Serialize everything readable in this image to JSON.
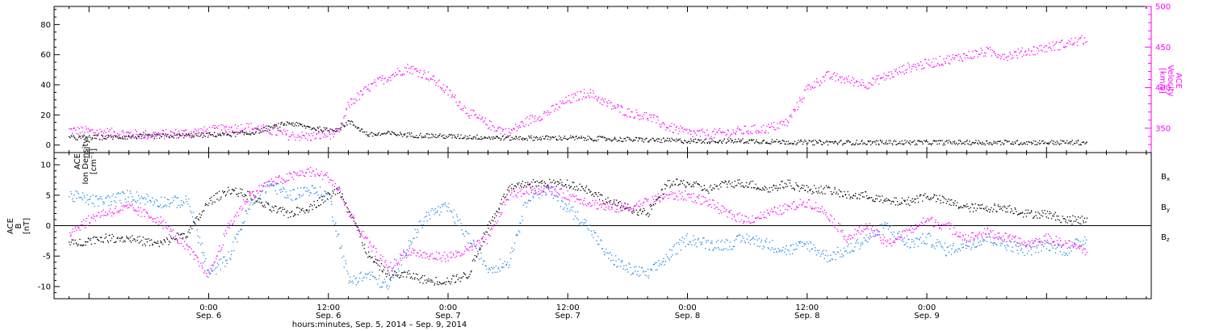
{
  "chart_data": [
    {
      "type": "scatter",
      "panel": "top",
      "ylabel_left": [
        "ACE",
        "Ion Density",
        "[cm⁻³]"
      ],
      "ylabel_right": [
        "ACE",
        "Velocity",
        "[km/s]"
      ],
      "ylim_left": [
        -5,
        92
      ],
      "ylim_right": [
        320,
        500
      ],
      "yticks_left": [
        "0",
        "20",
        "40",
        "60",
        "80"
      ],
      "yticks_right": [
        "350",
        "400",
        "450",
        "500"
      ],
      "colors": {
        "density": "#000000",
        "velocity": "#ff00ff"
      },
      "series": [
        {
          "name": "Ion Density",
          "axis": "left",
          "x": [
            -14,
            -6,
            0,
            4,
            8,
            10,
            12,
            13,
            14,
            16,
            18,
            20,
            24,
            30,
            36,
            42,
            48,
            54,
            60,
            66,
            72,
            78,
            84,
            88
          ],
          "values": [
            5,
            6,
            7,
            8,
            15,
            12,
            10,
            11,
            16,
            7,
            8,
            7,
            6,
            5,
            5,
            4,
            3,
            3,
            2,
            2,
            2,
            2,
            2,
            2
          ]
        },
        {
          "name": "Velocity",
          "axis": "right",
          "x": [
            -14,
            -10,
            -6,
            -2,
            2,
            4,
            6,
            8,
            10,
            12,
            13,
            14,
            16,
            17,
            19,
            20,
            22,
            24,
            26,
            28,
            30,
            32,
            34,
            36,
            38,
            40,
            42,
            44,
            46,
            48,
            50,
            52,
            54,
            56,
            58,
            60,
            62,
            64,
            66,
            68,
            70,
            72,
            74,
            76,
            78,
            80,
            82,
            84,
            86,
            88
          ],
          "values": [
            348,
            345,
            342,
            345,
            350,
            352,
            348,
            342,
            340,
            343,
            345,
            380,
            400,
            408,
            420,
            425,
            415,
            395,
            370,
            355,
            345,
            360,
            370,
            385,
            395,
            380,
            370,
            365,
            352,
            345,
            343,
            345,
            348,
            350,
            358,
            400,
            415,
            410,
            405,
            415,
            425,
            430,
            435,
            440,
            445,
            440,
            445,
            450,
            455,
            460
          ]
        }
      ]
    },
    {
      "type": "scatter",
      "panel": "bottom",
      "ylabel": [
        "ACE",
        "B",
        "[nT]"
      ],
      "ylim": [
        -12,
        12
      ],
      "yticks": [
        "-10",
        "-5",
        "0",
        "5",
        "10"
      ],
      "colors": {
        "Bx": "#000000",
        "By": "#1e88e5",
        "Bz": "#ff00ff"
      },
      "legend": [
        "Bx",
        "By",
        "Bz"
      ],
      "zero_line": true,
      "series": [
        {
          "name": "Bx",
          "x": [
            -14,
            -11,
            -8,
            -5,
            -2,
            0,
            2,
            4,
            6,
            8,
            10,
            12,
            13,
            14,
            16,
            18,
            20,
            22,
            24,
            26,
            28,
            30,
            32,
            34,
            36,
            38,
            40,
            42,
            44,
            46,
            48,
            50,
            52,
            54,
            56,
            58,
            60,
            62,
            64,
            66,
            68,
            70,
            72,
            74,
            76,
            78,
            80,
            82,
            84,
            86,
            88
          ],
          "values": [
            -3,
            -2,
            -2,
            -3,
            -1,
            4,
            6,
            5,
            3,
            2,
            3,
            5,
            6,
            3,
            -5,
            -8,
            -8,
            -9,
            -9,
            -8,
            0,
            6,
            7,
            7,
            7,
            6,
            4,
            3,
            2,
            7,
            7,
            6,
            7,
            7,
            6,
            7,
            6,
            6,
            5,
            5,
            4,
            4,
            5,
            4,
            3,
            3,
            3,
            2,
            2,
            1,
            1
          ]
        },
        {
          "name": "By",
          "x": [
            -14,
            -11,
            -8,
            -5,
            -2,
            0,
            2,
            4,
            6,
            8,
            10,
            12,
            14,
            16,
            18,
            20,
            22,
            24,
            26,
            28,
            30,
            32,
            34,
            36,
            38,
            40,
            42,
            44,
            46,
            48,
            50,
            52,
            54,
            56,
            58,
            60,
            62,
            64,
            66,
            68,
            70,
            72,
            74,
            76,
            78,
            80,
            82,
            84,
            86,
            88
          ],
          "values": [
            5,
            4,
            5,
            4,
            4,
            -8,
            -5,
            3,
            7,
            5,
            6,
            5,
            -9,
            -8,
            -10,
            -3,
            2,
            3,
            -2,
            -7,
            -6,
            5,
            6,
            3,
            0,
            -5,
            -7,
            -8,
            -5,
            -2,
            -3,
            -3,
            -2,
            -3,
            -4,
            -3,
            -5,
            -4,
            -2,
            0,
            -3,
            -2,
            -4,
            -3,
            -2,
            -3,
            -4,
            -3,
            -4,
            -2
          ]
        },
        {
          "name": "Bz",
          "x": [
            -14,
            -11,
            -8,
            -5,
            -2,
            0,
            2,
            4,
            6,
            8,
            10,
            12,
            13,
            14,
            16,
            18,
            20,
            22,
            24,
            26,
            28,
            30,
            32,
            34,
            36,
            38,
            40,
            42,
            44,
            46,
            48,
            50,
            52,
            54,
            56,
            58,
            60,
            62,
            64,
            66,
            68,
            70,
            72,
            74,
            76,
            78,
            80,
            82,
            84,
            86,
            88
          ],
          "values": [
            -1,
            2,
            3,
            1,
            -4,
            -8,
            0,
            5,
            7,
            8,
            9,
            8,
            6,
            2,
            -3,
            -7,
            -4,
            -5,
            -5,
            -4,
            -2,
            5,
            6,
            6,
            5,
            4,
            3,
            3,
            4,
            5,
            5,
            4,
            2,
            1,
            2,
            3,
            4,
            2,
            -2,
            0,
            -3,
            -1,
            1,
            0,
            -2,
            -1,
            -2,
            -3,
            -2,
            -3,
            -4
          ]
        }
      ]
    }
  ],
  "xaxis": {
    "range": [
      -15.5,
      94.5
    ],
    "ticks": [
      {
        "x": 0,
        "time": "0:00",
        "date": "Sep. 6"
      },
      {
        "x": 12,
        "time": "12:00",
        "date": "Sep. 6"
      },
      {
        "x": 24,
        "time": "0:00",
        "date": "Sep. 7"
      },
      {
        "x": 36,
        "time": "12:00",
        "date": "Sep. 7"
      },
      {
        "x": 48,
        "time": "0:00",
        "date": "Sep. 8"
      },
      {
        "x": 60,
        "time": "12:00",
        "date": "Sep. 8"
      },
      {
        "x": 72,
        "time": "0:00",
        "date": "Sep. 9"
      }
    ],
    "label": "hours:minutes, Sep. 5, 2014 – Sep. 9, 2014"
  }
}
